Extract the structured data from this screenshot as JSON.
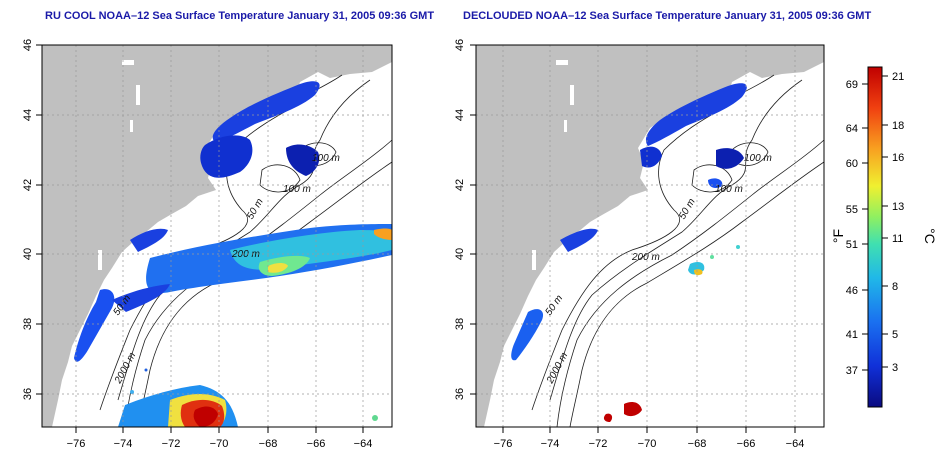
{
  "panels": [
    {
      "title": "RU COOL NOAA–12 Sea Surface Temperature January 31, 2005 09:36 GMT",
      "x_ticks": [
        "−76",
        "−74",
        "−72",
        "−70",
        "−68",
        "−66",
        "−64"
      ],
      "y_ticks": [
        "46",
        "44",
        "42",
        "40",
        "38",
        "36"
      ]
    },
    {
      "title": "DECLOUDED NOAA–12 Sea Surface Temperature January 31, 2005 09:36 GMT",
      "x_ticks": [
        "−76",
        "−74",
        "−72",
        "−70",
        "−68",
        "−66",
        "−64"
      ],
      "y_ticks": [
        "46",
        "44",
        "42",
        "40",
        "38",
        "36"
      ]
    }
  ],
  "contour_labels": [
    "100 m",
    "100 m",
    "50 m",
    "200 m",
    "50 m",
    "2000 m"
  ],
  "colorbar": {
    "fahrenheit_ticks": [
      "69",
      "64",
      "60",
      "55",
      "51",
      "46",
      "41",
      "37"
    ],
    "celsius_ticks": [
      "21",
      "18",
      "16",
      "13",
      "11",
      "8",
      "5",
      "3"
    ],
    "fahrenheit_unit": "°F",
    "celsius_unit": "°C",
    "colors": [
      "#0a0a80",
      "#1030d8",
      "#1a70f0",
      "#20b8e8",
      "#40e0b0",
      "#90f060",
      "#f0f030",
      "#f8a020",
      "#f04010",
      "#c00000"
    ]
  }
}
